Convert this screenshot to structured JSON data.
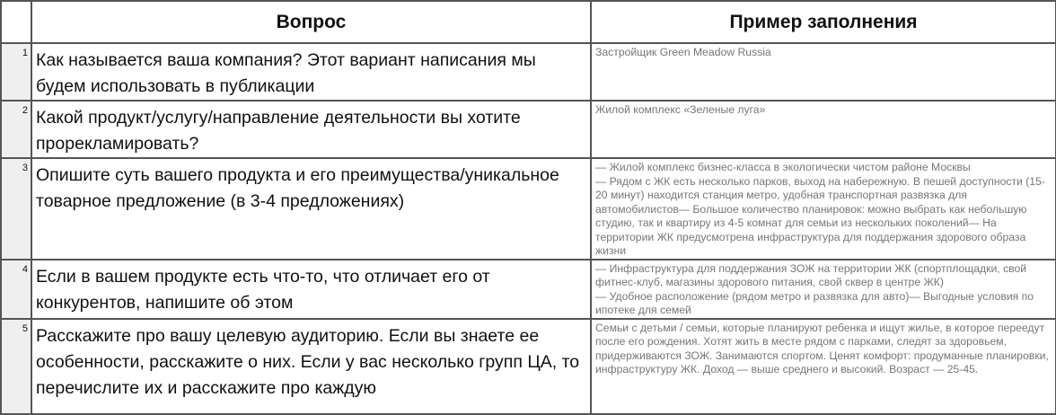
{
  "header": {
    "question": "Вопрос",
    "example": "Пример заполнения"
  },
  "rows": [
    {
      "num": "1",
      "question": "Как называется ваша компания? Этот вариант написания мы будем использовать в публикации",
      "example": "Застройщик Green Meadow Russia"
    },
    {
      "num": "2",
      "question": "Какой продукт/услугу/направление деятельности вы хотите прорекламировать?",
      "example": "Жилой комплекс «Зеленые луга»"
    },
    {
      "num": "3",
      "question": "Опишите суть вашего продукта и его преимущества/уникальное товарное предложение (в 3-4 предложениях)",
      "example": "— Жилой комплекс бизнес-класса в экологически чистом районе Москвы\n — Рядом с ЖК есть несколько парков, выход на набережную. В пешей доступности (15-20 минут) находится станция метро, удобная транспортная развязка для автомобилистов— Большое количество планировок: можно выбрать как небольшую студию, так и квартиру из 4-5 комнат для семьи из нескольких поколений— На территории ЖК предусмотрена инфраструктура для поддержания здорового образа жизни"
    },
    {
      "num": "4",
      "question": "Если в вашем продукте есть что-то, что отличает его от конкурентов, напишите об этом",
      "example": "— Инфраструктура для поддержания ЗОЖ на территории ЖК (спортплощадки, свой фитнес-клуб, магазины здорового питания, свой сквер в центре ЖК)\n— Удобное расположение (рядом метро и развязка для авто)— Выгодные условия по ипотеке для семей"
    },
    {
      "num": "5",
      "question": "Расскажите про вашу целевую аудиторию. Если вы знаете ее особенности, расскажите о них. Если у вас несколько групп ЦА, то перечислите их и расскажите про каждую",
      "example": "Семьи с детьми / семьи, которые планируют ребенка и ищут жилье, в которое переедут после его рождения. Хотят жить в месте рядом с парками, следят за здоровьем, придерживаются ЗОЖ. Занимаются спортом. Ценят комфорт: продуманные планировки, инфраструктуру ЖК. Доход — выше среднего и высокий. Возраст — 25-45."
    }
  ]
}
